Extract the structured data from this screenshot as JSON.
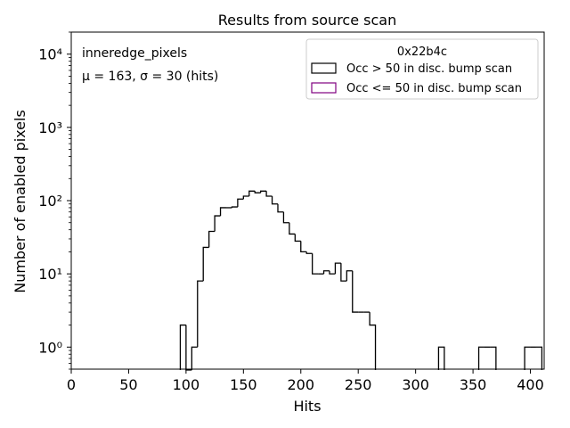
{
  "chart_data": {
    "type": "histogram",
    "title": "Results from source scan",
    "xlabel": "Hits",
    "ylabel": "Number of enabled pixels",
    "xscale": "linear",
    "yscale": "log",
    "xlim": [
      0,
      412
    ],
    "ylim": [
      0.5,
      20000
    ],
    "xticks": [
      0,
      50,
      100,
      150,
      200,
      250,
      300,
      350,
      400
    ],
    "yticks": [
      {
        "value": 1,
        "label": "10⁰"
      },
      {
        "value": 10,
        "label": "10¹"
      },
      {
        "value": 100,
        "label": "10²"
      },
      {
        "value": 1000,
        "label": "10³"
      },
      {
        "value": 10000,
        "label": "10⁴"
      }
    ],
    "grid": false,
    "annotations": [
      "inneredge_pixels",
      "μ = 163, σ = 30 (hits)"
    ],
    "legend": {
      "title": "0x22b4c",
      "location": "upper-right",
      "entries": [
        {
          "label": "Occ > 50 in disc. bump scan",
          "color": "#000000"
        },
        {
          "label": "Occ <= 50 in disc. bump scan",
          "color": "#800080"
        }
      ]
    },
    "bin_width": 5,
    "series": [
      {
        "name": "Occ > 50 in disc. bump scan",
        "color": "#000000",
        "bins": [
          [
            95,
            2
          ],
          [
            100,
            0
          ],
          [
            105,
            1
          ],
          [
            110,
            8
          ],
          [
            115,
            23
          ],
          [
            120,
            38
          ],
          [
            125,
            62
          ],
          [
            130,
            80
          ],
          [
            135,
            80
          ],
          [
            140,
            82
          ],
          [
            145,
            105
          ],
          [
            150,
            115
          ],
          [
            155,
            135
          ],
          [
            160,
            128
          ],
          [
            165,
            135
          ],
          [
            170,
            115
          ],
          [
            175,
            90
          ],
          [
            180,
            70
          ],
          [
            185,
            50
          ],
          [
            190,
            35
          ],
          [
            195,
            28
          ],
          [
            200,
            20
          ],
          [
            205,
            19
          ],
          [
            210,
            10
          ],
          [
            215,
            10
          ],
          [
            220,
            11
          ],
          [
            225,
            10
          ],
          [
            230,
            14
          ],
          [
            235,
            8
          ],
          [
            240,
            11
          ],
          [
            245,
            3
          ],
          [
            250,
            3
          ],
          [
            255,
            3
          ],
          [
            260,
            2
          ],
          [
            320,
            1
          ],
          [
            355,
            1
          ],
          [
            360,
            1
          ],
          [
            365,
            1
          ],
          [
            395,
            1
          ],
          [
            400,
            1
          ],
          [
            405,
            1
          ]
        ]
      },
      {
        "name": "Occ <= 50 in disc. bump scan",
        "color": "#800080",
        "bins": []
      }
    ]
  }
}
